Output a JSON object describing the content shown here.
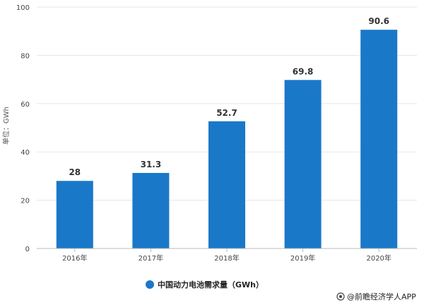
{
  "chart_data": {
    "type": "bar",
    "categories": [
      "2016年",
      "2017年",
      "2018年",
      "2019年",
      "2020年"
    ],
    "series": [
      {
        "name": "中国动力电池需求量（GWh）",
        "values": [
          28,
          31.3,
          52.7,
          69.8,
          90.6
        ],
        "color": "#1a78c8"
      }
    ],
    "data_labels": [
      "28",
      "31.3",
      "52.7",
      "69.8",
      "90.6"
    ],
    "ylabel": "单位：GWh",
    "ylim": [
      0,
      100
    ],
    "yticks": [
      0,
      20,
      40,
      60,
      80,
      100
    ],
    "ytick_labels": [
      "0",
      "20",
      "40",
      "60",
      "80",
      "100"
    ],
    "grid": true,
    "legend_position": "bottom-center"
  },
  "credit": {
    "text": "@前瞻经济学人APP"
  }
}
